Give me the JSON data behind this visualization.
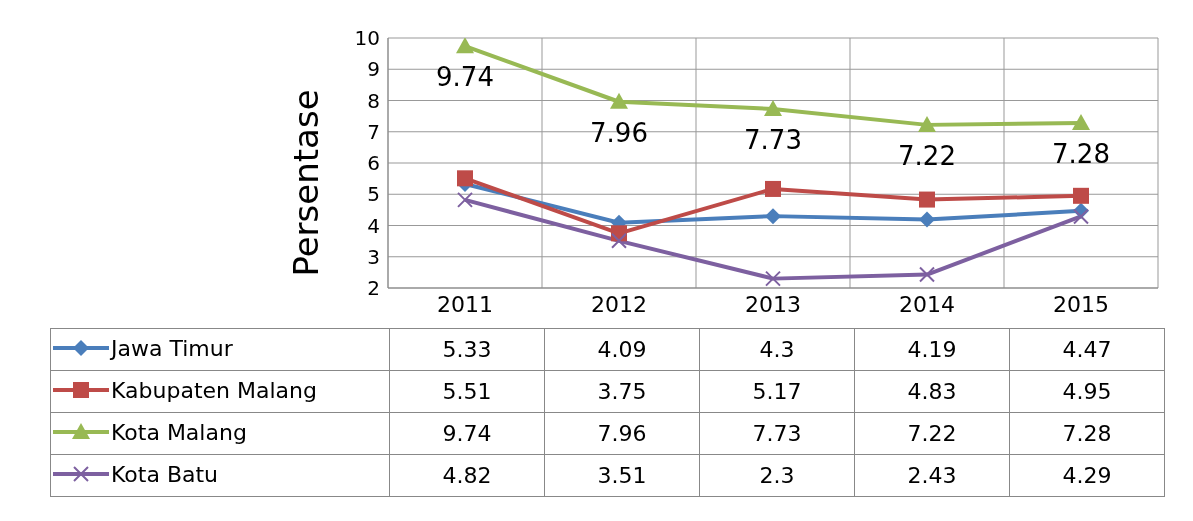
{
  "chart_data": {
    "type": "line",
    "ylabel": "Persentase",
    "categories": [
      "2011",
      "2012",
      "2013",
      "2014",
      "2015"
    ],
    "ylim": [
      2,
      10
    ],
    "yticks": [
      2,
      3,
      4,
      5,
      6,
      7,
      8,
      9,
      10
    ],
    "grid": true,
    "legend": "bottom",
    "data_labels": true,
    "annotations": [
      {
        "text": "9.74",
        "x": "2011",
        "y": 9.74
      },
      {
        "text": "7.96",
        "x": "2012",
        "y": 7.96
      },
      {
        "text": "7.73",
        "x": "2013",
        "y": 7.73
      },
      {
        "text": "7.22",
        "x": "2014",
        "y": 7.22
      },
      {
        "text": "7.28",
        "x": "2015",
        "y": 7.28
      }
    ],
    "series": [
      {
        "name": "Jawa Timur",
        "color": "#4a7ebb",
        "marker": "diamond",
        "values": [
          5.33,
          4.09,
          4.3,
          4.19,
          4.47
        ]
      },
      {
        "name": "Kabupaten Malang",
        "color": "#be4b48",
        "marker": "square",
        "values": [
          5.51,
          3.75,
          5.17,
          4.83,
          4.95
        ]
      },
      {
        "name": "Kota Malang",
        "color": "#98b954",
        "marker": "triangle",
        "values": [
          9.74,
          7.96,
          7.73,
          7.22,
          7.28
        ]
      },
      {
        "name": "Kota Batu",
        "color": "#7d60a0",
        "marker": "cross",
        "values": [
          4.82,
          3.51,
          2.3,
          2.43,
          4.29
        ]
      }
    ]
  }
}
